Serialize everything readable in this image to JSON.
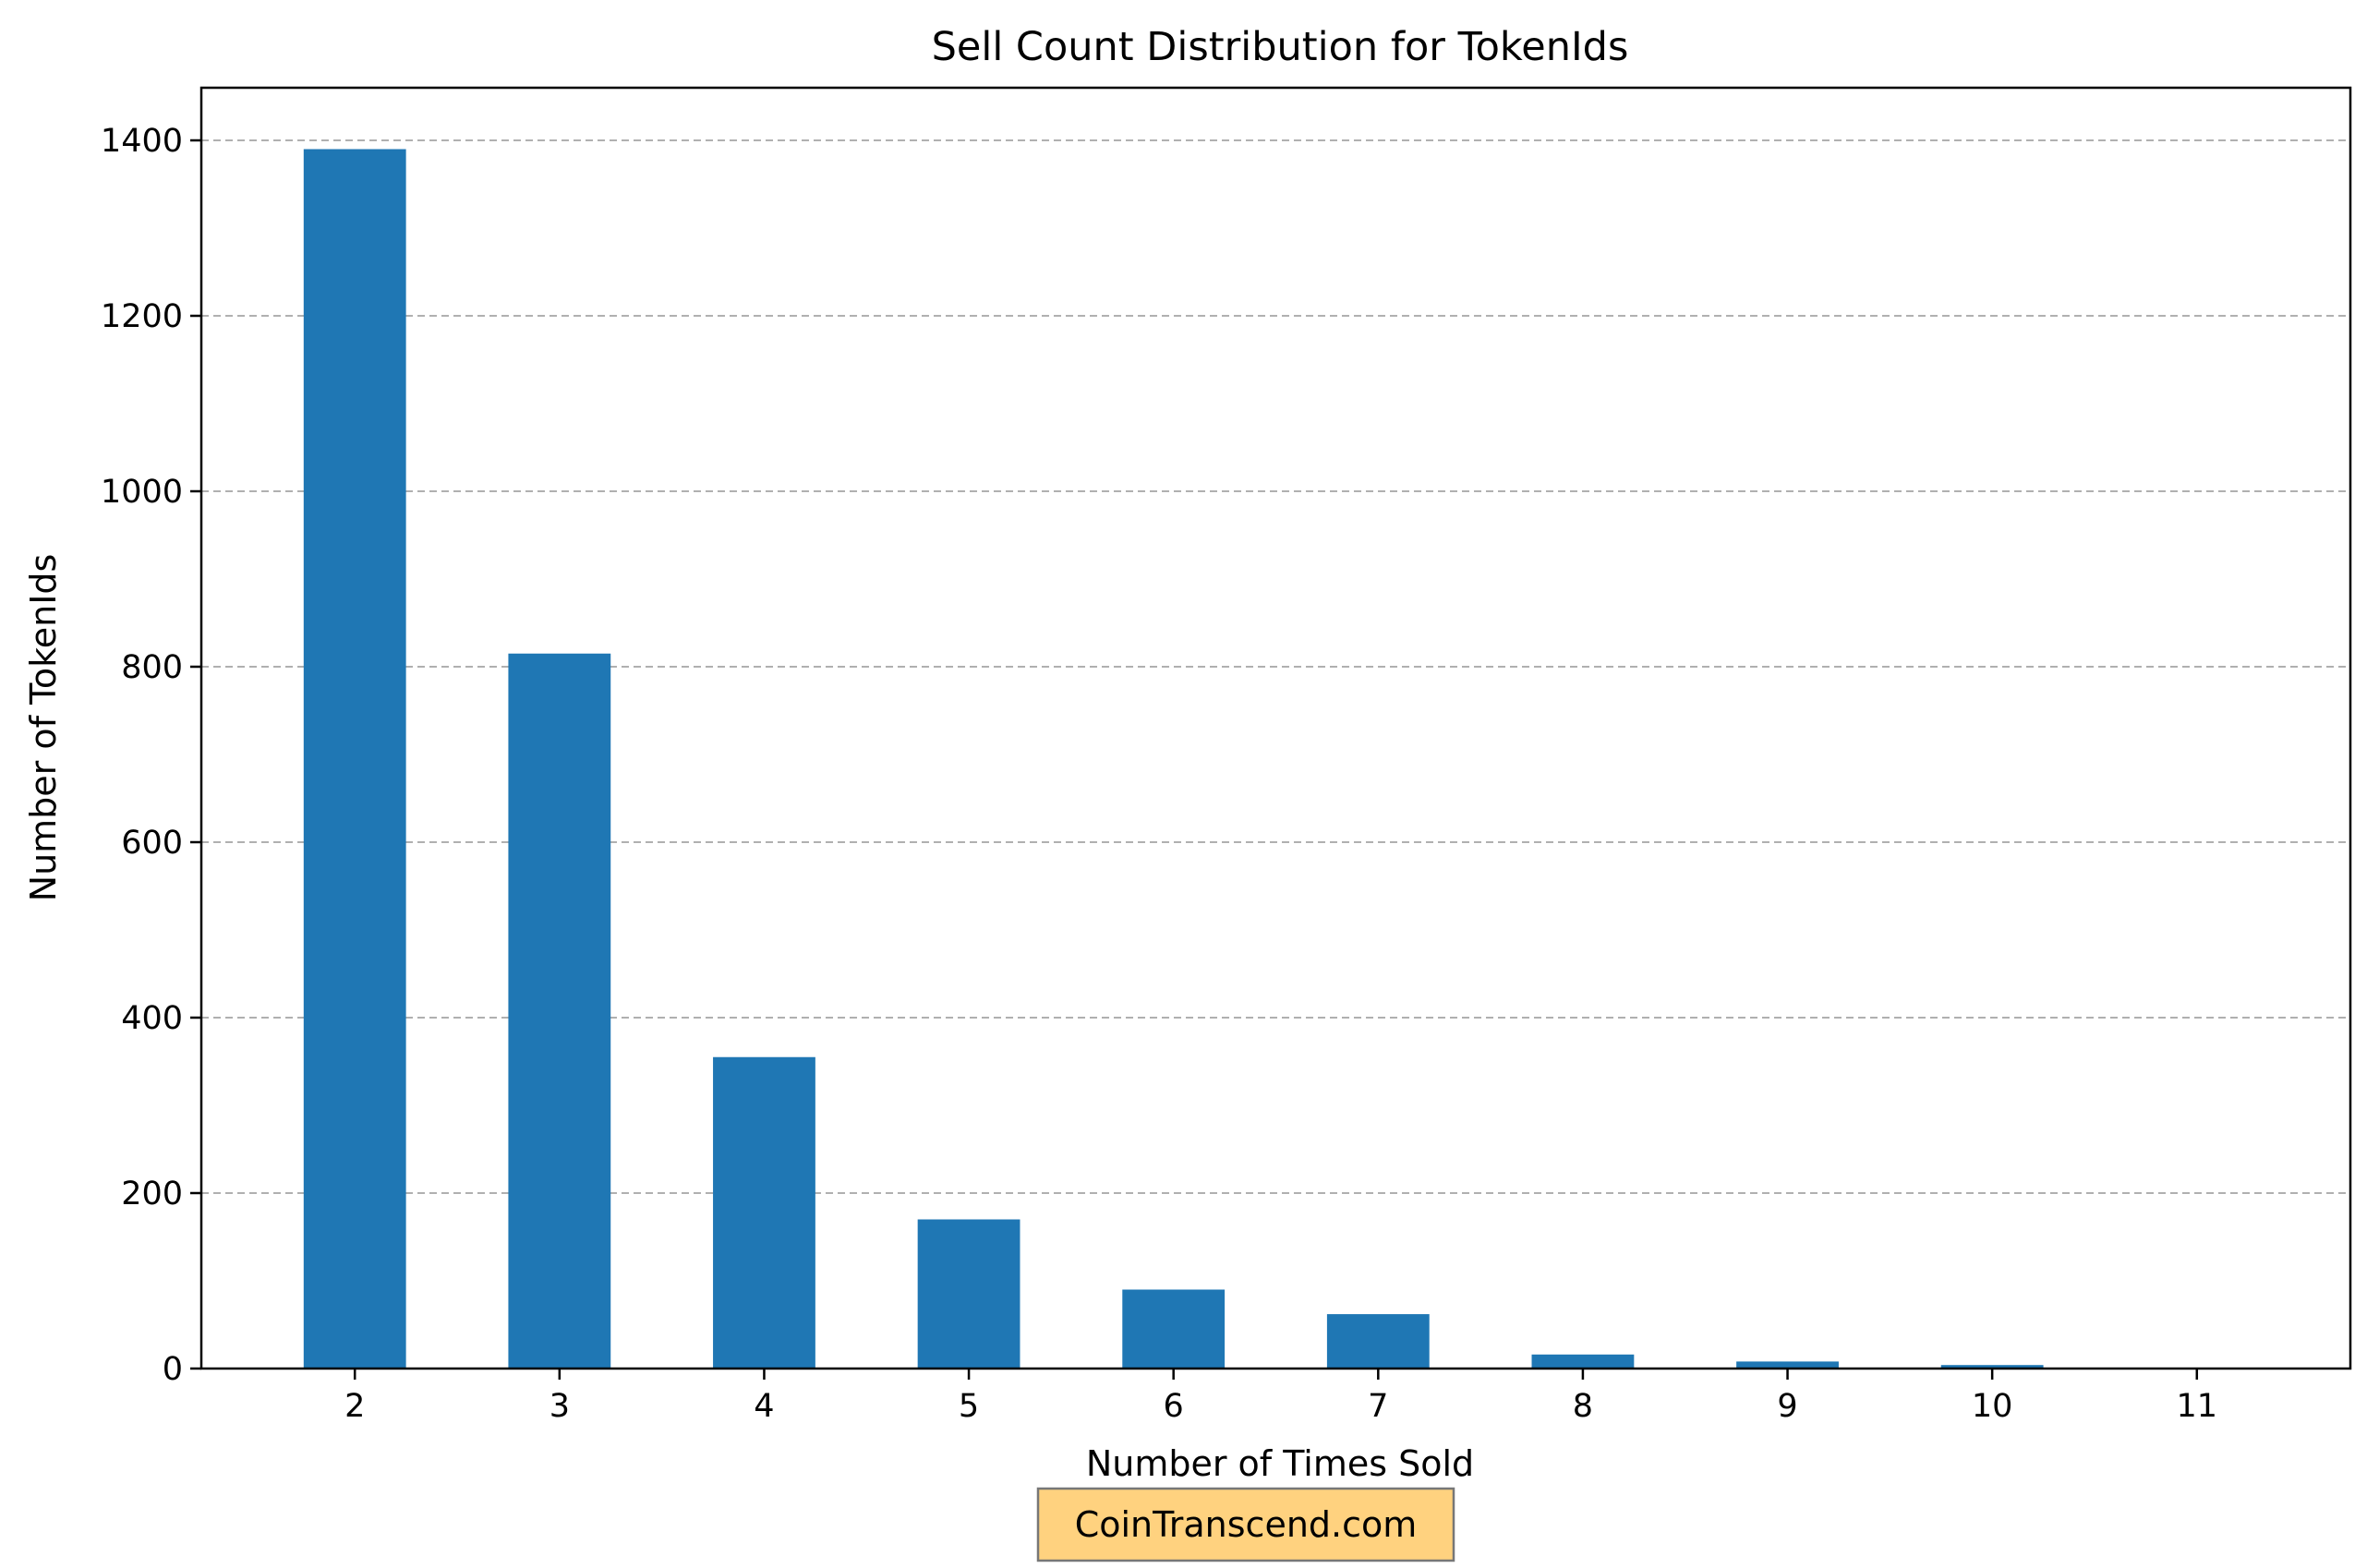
{
  "chart_data": {
    "type": "bar",
    "title": "Sell Count Distribution for TokenIds",
    "xlabel": "Number of Times Sold",
    "ylabel": "Number of TokenIds",
    "categories": [
      "2",
      "3",
      "4",
      "5",
      "6",
      "7",
      "8",
      "9",
      "10",
      "11"
    ],
    "values": [
      1390,
      815,
      355,
      170,
      90,
      62,
      16,
      8,
      4,
      1
    ],
    "ylim": [
      0,
      1460
    ],
    "yticks": [
      0,
      200,
      400,
      600,
      800,
      1000,
      1200,
      1400
    ],
    "grid": "y-dashed",
    "bar_color": "#1f77b4",
    "grid_color": "#b0b0b0"
  },
  "watermark": {
    "text": "CoinTranscend.com",
    "fill": "#ffd27f",
    "border": "#777777"
  }
}
